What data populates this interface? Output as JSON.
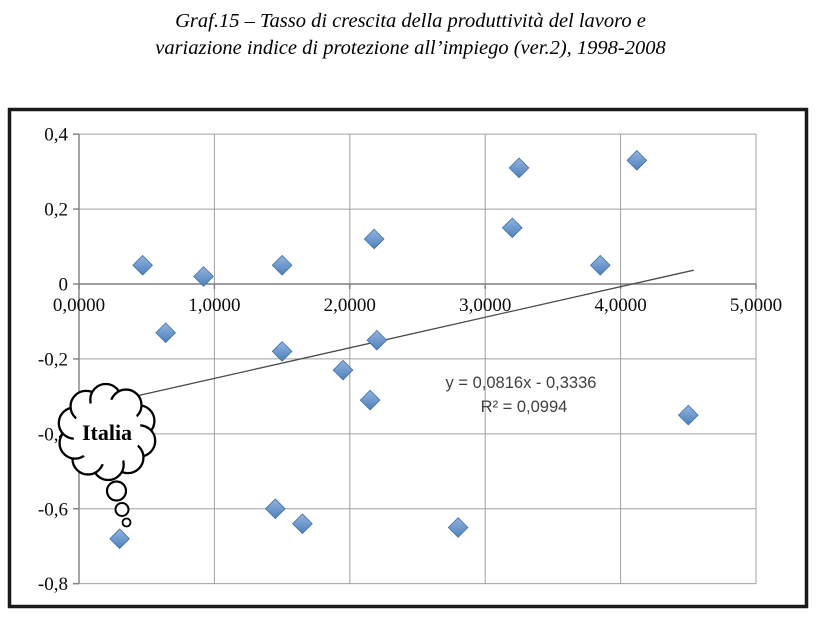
{
  "title": {
    "line1": "Graf.15 – Tasso di crescita della  produttività del lavoro e",
    "line2": "variazione indice di protezione all’impiego (ver.2), 1998-2008"
  },
  "chart_data": {
    "type": "scatter",
    "title": "Graf.15 – Tasso di crescita della produttività del lavoro e variazione indice di protezione all’impiego (ver.2), 1998-2008",
    "title_lines": [
      "Graf.15 – Tasso di crescita della  produttività del lavoro e",
      "variazione indice di protezione all’impiego (ver.2), 1998-2008"
    ],
    "xlabel": "",
    "ylabel": "",
    "grid": true,
    "legend": null,
    "x_axis": {
      "min": 0,
      "max": 5,
      "tick_step": 1,
      "tick_labels": [
        "0,0000",
        "1,0000",
        "2,0000",
        "3,0000",
        "4,0000",
        "5,0000"
      ]
    },
    "y_axis": {
      "min": -0.8,
      "max": 0.4,
      "tick_step": 0.2,
      "tick_labels": [
        "0,4",
        "0,2",
        "0",
        "-0,2",
        "-0,4",
        "-0,6",
        "-0,8"
      ]
    },
    "xlim": [
      0,
      5
    ],
    "ylim": [
      -0.8,
      0.4
    ],
    "points": [
      [
        0.47,
        0.05
      ],
      [
        0.92,
        0.02
      ],
      [
        1.5,
        0.05
      ],
      [
        2.18,
        0.12
      ],
      [
        3.25,
        0.31
      ],
      [
        4.12,
        0.33
      ],
      [
        3.2,
        0.15
      ],
      [
        3.85,
        0.05
      ],
      [
        0.64,
        -0.13
      ],
      [
        1.5,
        -0.18
      ],
      [
        2.2,
        -0.15
      ],
      [
        1.95,
        -0.23
      ],
      [
        2.15,
        -0.31
      ],
      [
        0.3,
        -0.68
      ],
      [
        1.45,
        -0.6
      ],
      [
        1.65,
        -0.64
      ],
      [
        2.8,
        -0.65
      ],
      [
        4.5,
        -0.35
      ]
    ],
    "trendline": {
      "slope": 0.0816,
      "intercept": -0.3336,
      "x_start": 0.37,
      "x_end": 4.54,
      "equation_label": "y = 0,0816x - 0,3336",
      "r2_label": "R² = 0,0994"
    },
    "annotation": {
      "label": "Italia",
      "points_to": [
        0.3,
        -0.68
      ]
    },
    "colors": {
      "marker": "#4E80BC",
      "marker_light": "#92B4E0",
      "marker_stroke": "#44719F",
      "gridline": "#A0A0A0",
      "axis": "#7F7F7F",
      "frame": "#1A1A1A",
      "trendline": "#4A4A4A",
      "equation_text": "#404040",
      "cloud_stroke": "#000000"
    }
  }
}
